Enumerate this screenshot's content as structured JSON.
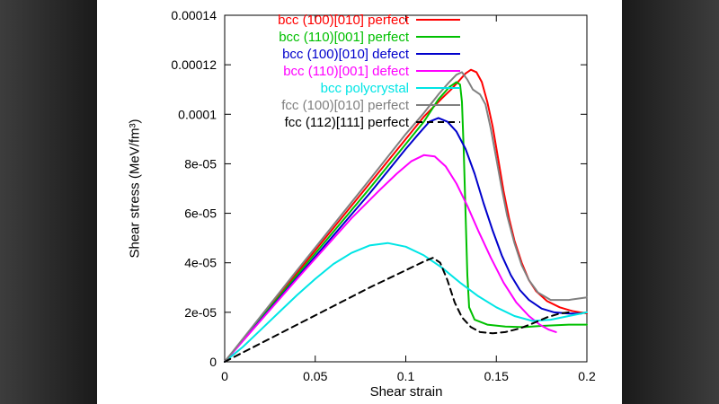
{
  "page": {
    "letterbox": {
      "outer_color": "#3d3d3d",
      "inner_color": "#1a1a1a"
    }
  },
  "chart_data": {
    "type": "line",
    "title": "",
    "xlabel": "Shear strain",
    "ylabel": "Shear stress (MeV/fm³)",
    "xlim": [
      0,
      0.2
    ],
    "ylim": [
      0,
      0.00014
    ],
    "grid": false,
    "legend_position": "top-left-inside",
    "xticks": {
      "values": [
        0,
        0.05,
        0.1,
        0.15,
        0.2
      ],
      "labels": [
        "0",
        "0.05",
        "0.1",
        "0.15",
        "0.2"
      ]
    },
    "yticks": {
      "values": [
        0,
        2e-05,
        4e-05,
        6e-05,
        8e-05,
        0.0001,
        0.00012,
        0.00014
      ],
      "labels": [
        "0",
        "2e-05",
        "4e-05",
        "6e-05",
        "8e-05",
        "0.0001",
        "0.00012",
        "0.00014"
      ]
    },
    "series": [
      {
        "name": "bcc (100)[010] perfect",
        "color": "#ff0000",
        "dash": "solid",
        "points": [
          [
            0,
            0
          ],
          [
            0.04,
            3.6e-05
          ],
          [
            0.08,
            7.2e-05
          ],
          [
            0.1,
            9e-05
          ],
          [
            0.11,
            9.9e-05
          ],
          [
            0.12,
            0.0001065
          ],
          [
            0.125,
            0.00011
          ],
          [
            0.13,
            0.000114
          ],
          [
            0.133,
            0.0001165
          ],
          [
            0.136,
            0.000118
          ],
          [
            0.139,
            0.000117
          ],
          [
            0.142,
            0.000113
          ],
          [
            0.145,
            0.000105
          ],
          [
            0.148,
            9.5e-05
          ],
          [
            0.151,
            8.2e-05
          ],
          [
            0.154,
            6.9e-05
          ],
          [
            0.157,
            5.8e-05
          ],
          [
            0.16,
            4.9e-05
          ],
          [
            0.164,
            4e-05
          ],
          [
            0.168,
            3.3e-05
          ],
          [
            0.172,
            2.85e-05
          ],
          [
            0.178,
            2.45e-05
          ],
          [
            0.185,
            2.2e-05
          ],
          [
            0.192,
            2.05e-05
          ],
          [
            0.2,
            1.95e-05
          ]
        ]
      },
      {
        "name": "bcc (110)[001] perfect",
        "color": "#00c000",
        "dash": "solid",
        "points": [
          [
            0,
            0
          ],
          [
            0.04,
            3.5e-05
          ],
          [
            0.08,
            7e-05
          ],
          [
            0.1,
            8.8e-05
          ],
          [
            0.11,
            9.7e-05
          ],
          [
            0.118,
            0.000106
          ],
          [
            0.124,
            0.000111
          ],
          [
            0.128,
            0.000113
          ],
          [
            0.13,
            0.000112
          ],
          [
            0.131,
            0.000105
          ],
          [
            0.132,
            8.5e-05
          ],
          [
            0.133,
            6e-05
          ],
          [
            0.134,
            3.5e-05
          ],
          [
            0.135,
            2.2e-05
          ],
          [
            0.138,
            1.7e-05
          ],
          [
            0.145,
            1.5e-05
          ],
          [
            0.155,
            1.42e-05
          ],
          [
            0.165,
            1.4e-05
          ],
          [
            0.175,
            1.45e-05
          ],
          [
            0.19,
            1.5e-05
          ],
          [
            0.2,
            1.5e-05
          ]
        ]
      },
      {
        "name": "bcc (100)[010] defect",
        "color": "#0000cc",
        "dash": "solid",
        "points": [
          [
            0,
            0
          ],
          [
            0.04,
            3.4e-05
          ],
          [
            0.08,
            6.8e-05
          ],
          [
            0.09,
            7.7e-05
          ],
          [
            0.1,
            8.6e-05
          ],
          [
            0.107,
            9.2e-05
          ],
          [
            0.113,
            9.7e-05
          ],
          [
            0.118,
            9.85e-05
          ],
          [
            0.123,
            9.7e-05
          ],
          [
            0.128,
            9.3e-05
          ],
          [
            0.133,
            8.6e-05
          ],
          [
            0.138,
            7.6e-05
          ],
          [
            0.143,
            6.4e-05
          ],
          [
            0.148,
            5.3e-05
          ],
          [
            0.153,
            4.3e-05
          ],
          [
            0.158,
            3.5e-05
          ],
          [
            0.163,
            2.9e-05
          ],
          [
            0.168,
            2.5e-05
          ],
          [
            0.175,
            2.15e-05
          ],
          [
            0.182,
            2e-05
          ],
          [
            0.19,
            1.95e-05
          ],
          [
            0.197,
            1.95e-05
          ]
        ]
      },
      {
        "name": "bcc (110)[001] defect",
        "color": "#ff00ff",
        "dash": "solid",
        "points": [
          [
            0,
            0
          ],
          [
            0.04,
            3.35e-05
          ],
          [
            0.07,
            5.8e-05
          ],
          [
            0.085,
            6.9e-05
          ],
          [
            0.095,
            7.6e-05
          ],
          [
            0.103,
            8.1e-05
          ],
          [
            0.11,
            8.35e-05
          ],
          [
            0.116,
            8.3e-05
          ],
          [
            0.122,
            7.9e-05
          ],
          [
            0.128,
            7.2e-05
          ],
          [
            0.134,
            6.3e-05
          ],
          [
            0.14,
            5.3e-05
          ],
          [
            0.147,
            4.2e-05
          ],
          [
            0.154,
            3.2e-05
          ],
          [
            0.161,
            2.4e-05
          ],
          [
            0.168,
            1.85e-05
          ],
          [
            0.174,
            1.5e-05
          ],
          [
            0.179,
            1.3e-05
          ],
          [
            0.183,
            1.2e-05
          ]
        ]
      },
      {
        "name": "bcc polycrystal",
        "color": "#00e5e5",
        "dash": "solid",
        "points": [
          [
            0,
            0
          ],
          [
            0.01,
            6e-06
          ],
          [
            0.02,
            1.3e-05
          ],
          [
            0.03,
            2e-05
          ],
          [
            0.04,
            2.7e-05
          ],
          [
            0.05,
            3.35e-05
          ],
          [
            0.06,
            3.95e-05
          ],
          [
            0.07,
            4.4e-05
          ],
          [
            0.08,
            4.7e-05
          ],
          [
            0.09,
            4.8e-05
          ],
          [
            0.1,
            4.65e-05
          ],
          [
            0.11,
            4.3e-05
          ],
          [
            0.12,
            3.8e-05
          ],
          [
            0.13,
            3.2e-05
          ],
          [
            0.14,
            2.65e-05
          ],
          [
            0.15,
            2.2e-05
          ],
          [
            0.16,
            1.85e-05
          ],
          [
            0.17,
            1.65e-05
          ],
          [
            0.18,
            1.7e-05
          ],
          [
            0.19,
            1.85e-05
          ],
          [
            0.2,
            2e-05
          ]
        ]
      },
      {
        "name": "fcc (100)[010] perfect",
        "color": "#808080",
        "dash": "solid",
        "points": [
          [
            0,
            0
          ],
          [
            0.04,
            3.7e-05
          ],
          [
            0.08,
            7.35e-05
          ],
          [
            0.1,
            9.2e-05
          ],
          [
            0.11,
            0.0001005
          ],
          [
            0.118,
            0.000108
          ],
          [
            0.124,
            0.000113
          ],
          [
            0.128,
            0.000116
          ],
          [
            0.131,
            0.000117
          ],
          [
            0.134,
            0.000114
          ],
          [
            0.137,
            0.00011
          ],
          [
            0.141,
            0.000108
          ],
          [
            0.144,
            0.000104
          ],
          [
            0.147,
            9.4e-05
          ],
          [
            0.15,
            8.2e-05
          ],
          [
            0.153,
            7e-05
          ],
          [
            0.156,
            5.9e-05
          ],
          [
            0.16,
            4.8e-05
          ],
          [
            0.164,
            3.9e-05
          ],
          [
            0.168,
            3.3e-05
          ],
          [
            0.173,
            2.8e-05
          ],
          [
            0.18,
            2.5e-05
          ],
          [
            0.19,
            2.5e-05
          ],
          [
            0.2,
            2.6e-05
          ]
        ]
      },
      {
        "name": "fcc (112)[111] perfect",
        "color": "#000000",
        "dash": "dashed",
        "points": [
          [
            0,
            0
          ],
          [
            0.02,
            7.5e-06
          ],
          [
            0.04,
            1.5e-05
          ],
          [
            0.06,
            2.25e-05
          ],
          [
            0.08,
            3e-05
          ],
          [
            0.1,
            3.7e-05
          ],
          [
            0.11,
            4.05e-05
          ],
          [
            0.115,
            4.2e-05
          ],
          [
            0.119,
            4e-05
          ],
          [
            0.123,
            3.3e-05
          ],
          [
            0.127,
            2.4e-05
          ],
          [
            0.131,
            1.8e-05
          ],
          [
            0.136,
            1.4e-05
          ],
          [
            0.141,
            1.2e-05
          ],
          [
            0.148,
            1.15e-05
          ],
          [
            0.155,
            1.2e-05
          ],
          [
            0.163,
            1.35e-05
          ],
          [
            0.17,
            1.55e-05
          ],
          [
            0.178,
            1.8e-05
          ],
          [
            0.185,
            1.95e-05
          ],
          [
            0.19,
            2e-05
          ]
        ]
      }
    ]
  }
}
